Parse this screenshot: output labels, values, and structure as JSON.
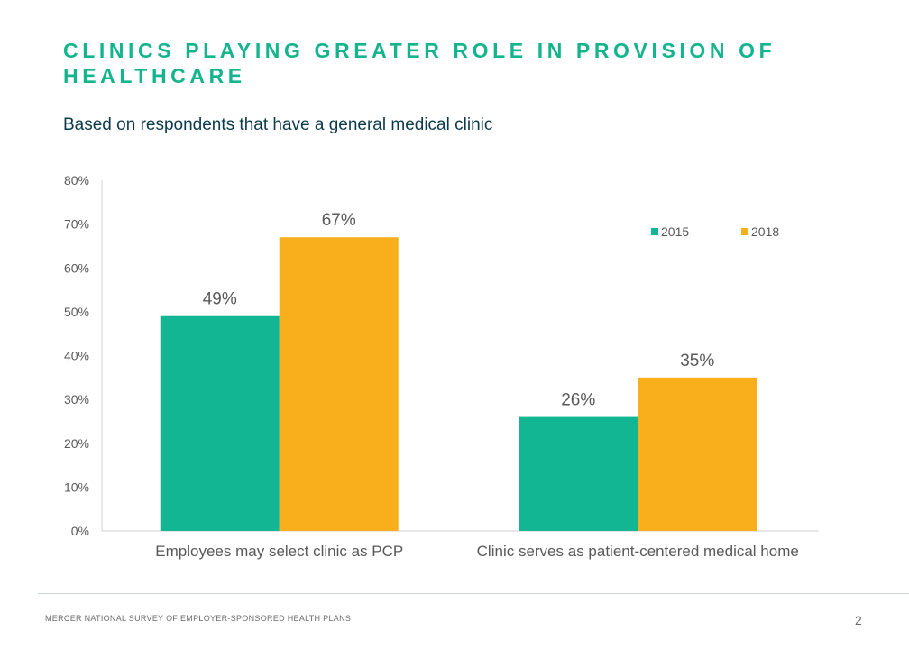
{
  "page": {
    "title": "CLINICS PLAYING GREATER ROLE IN PROVISION OF HEALTHCARE",
    "subtitle": "Based on respondents that have a general medical clinic",
    "footer": "MERCER  NATIONAL SURVEY OF EMPLOYER-SPONSORED  HEALTH PLANS",
    "page_number": "2"
  },
  "colors": {
    "title": "#14b48e",
    "series_2015": "#13b693",
    "series_2018": "#f9ae1c"
  },
  "chart_data": {
    "type": "bar",
    "title": "",
    "xlabel": "",
    "ylabel": "",
    "categories": [
      "Employees may select clinic as PCP",
      "Clinic serves as patient-centered medical home"
    ],
    "series": [
      {
        "name": "2015",
        "values": [
          49,
          26
        ],
        "labels": [
          "49%",
          "26%"
        ],
        "color": "#13b693"
      },
      {
        "name": "2018",
        "values": [
          67,
          35
        ],
        "labels": [
          "67%",
          "35%"
        ],
        "color": "#f9ae1c"
      }
    ],
    "ylim": [
      0,
      80
    ],
    "yticks": [
      "0%",
      "10%",
      "20%",
      "30%",
      "40%",
      "50%",
      "60%",
      "70%",
      "80%"
    ],
    "grid": false,
    "legend": "top-right"
  }
}
